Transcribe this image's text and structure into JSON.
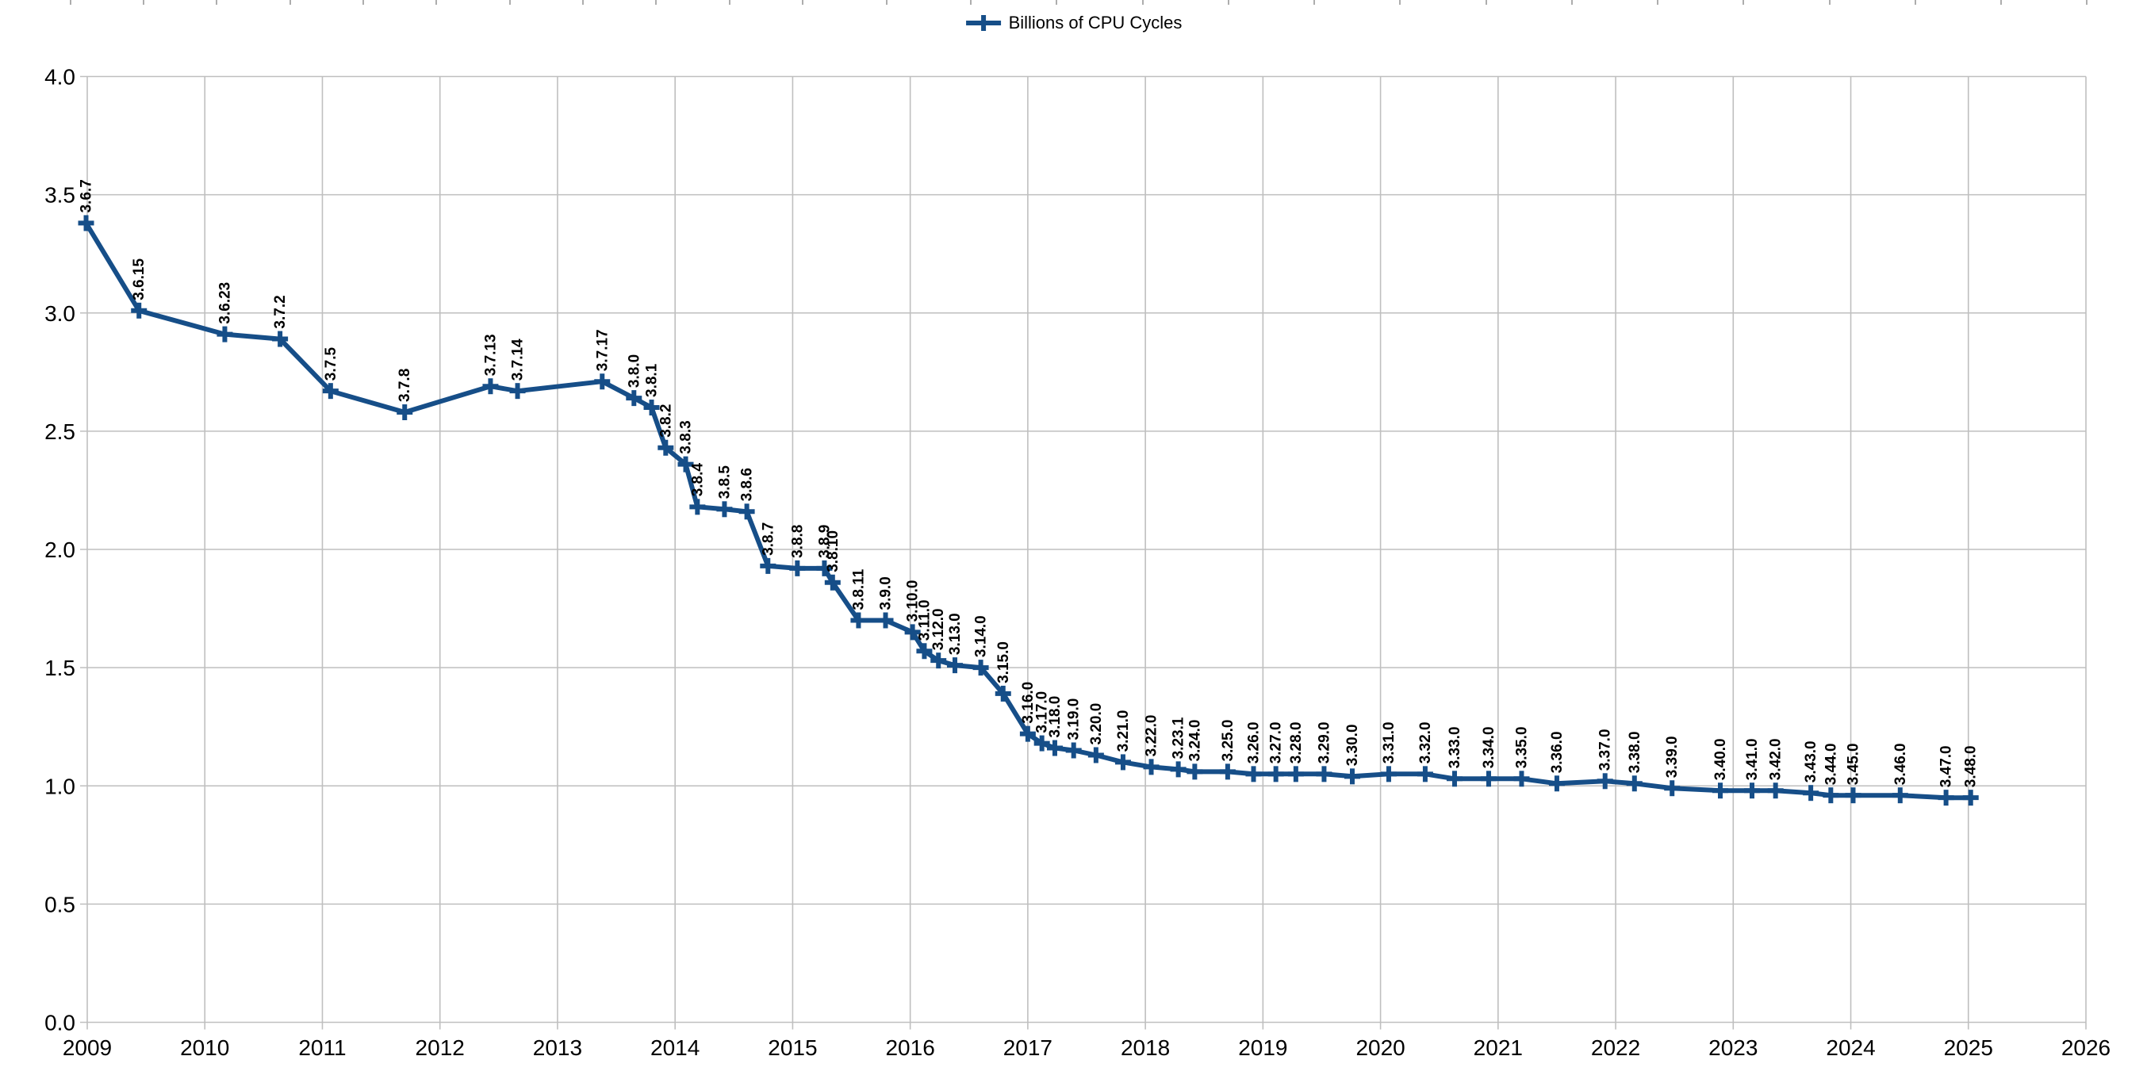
{
  "page": {
    "background": "#ffffff"
  },
  "legend": {
    "label": "Billions of CPU Cycles"
  },
  "decorations": {
    "top_ruler_tick_xs": [
      89,
      181,
      273,
      366,
      458,
      550,
      643,
      735,
      827,
      920,
      1012,
      1118,
      1224,
      1332,
      1441,
      1549,
      1657,
      1765,
      1874,
      1982,
      2090,
      2198,
      2307,
      2415,
      2523,
      2631
    ],
    "ruler_color": "#adadad"
  },
  "chart_data": {
    "type": "line",
    "title": "",
    "legend": [
      "Billions of CPU Cycles"
    ],
    "legend_position": "top-center",
    "grid": true,
    "colors": {
      "series": "#164e88",
      "grid": "#bfbfbf",
      "text": "#000000"
    },
    "x_axis": {
      "min": 2009,
      "max": 2026,
      "tick_step": 1,
      "tick_labels": [
        "2009",
        "2010",
        "2011",
        "2012",
        "2013",
        "2014",
        "2015",
        "2016",
        "2017",
        "2018",
        "2019",
        "2020",
        "2021",
        "2022",
        "2023",
        "2024",
        "2025",
        "2026"
      ]
    },
    "y_axis": {
      "min": 0.0,
      "max": 4.0,
      "tick_step": 0.5,
      "tick_labels": [
        "0.0",
        "0.5",
        "1.0",
        "1.5",
        "2.0",
        "2.5",
        "3.0",
        "3.5",
        "4.0"
      ]
    },
    "series": [
      {
        "name": "Billions of CPU Cycles",
        "marker": "plus",
        "points": [
          {
            "label": "3.6.7",
            "x": 2008.99,
            "y": 3.38
          },
          {
            "label": "3.6.15",
            "x": 2009.44,
            "y": 3.01
          },
          {
            "label": "3.6.23",
            "x": 2010.17,
            "y": 2.91
          },
          {
            "label": "3.7.2",
            "x": 2010.64,
            "y": 2.89
          },
          {
            "label": "3.7.5",
            "x": 2011.07,
            "y": 2.67
          },
          {
            "label": "3.7.8",
            "x": 2011.7,
            "y": 2.58
          },
          {
            "label": "3.7.13",
            "x": 2012.43,
            "y": 2.69
          },
          {
            "label": "3.7.14",
            "x": 2012.66,
            "y": 2.67
          },
          {
            "label": "3.7.17",
            "x": 2013.38,
            "y": 2.71
          },
          {
            "label": "3.8.0",
            "x": 2013.65,
            "y": 2.64
          },
          {
            "label": "3.8.1",
            "x": 2013.8,
            "y": 2.6
          },
          {
            "label": "3.8.2",
            "x": 2013.92,
            "y": 2.43
          },
          {
            "label": "3.8.3",
            "x": 2014.09,
            "y": 2.36
          },
          {
            "label": "3.8.4",
            "x": 2014.19,
            "y": 2.18
          },
          {
            "label": "3.8.5",
            "x": 2014.42,
            "y": 2.17
          },
          {
            "label": "3.8.6",
            "x": 2014.61,
            "y": 2.16
          },
          {
            "label": "3.8.7",
            "x": 2014.79,
            "y": 1.93
          },
          {
            "label": "3.8.8",
            "x": 2015.04,
            "y": 1.92
          },
          {
            "label": "3.8.9",
            "x": 2015.27,
            "y": 1.92
          },
          {
            "label": "3.8.10",
            "x": 2015.34,
            "y": 1.86
          },
          {
            "label": "3.8.11",
            "x": 2015.56,
            "y": 1.7
          },
          {
            "label": "3.9.0",
            "x": 2015.79,
            "y": 1.7
          },
          {
            "label": "3.10.0",
            "x": 2016.02,
            "y": 1.65
          },
          {
            "label": "3.11.0",
            "x": 2016.12,
            "y": 1.57
          },
          {
            "label": "3.12.0",
            "x": 2016.24,
            "y": 1.53
          },
          {
            "label": "3.13.0",
            "x": 2016.38,
            "y": 1.51
          },
          {
            "label": "3.14.0",
            "x": 2016.6,
            "y": 1.5
          },
          {
            "label": "3.15.0",
            "x": 2016.79,
            "y": 1.39
          },
          {
            "label": "3.16.0",
            "x": 2017.0,
            "y": 1.22
          },
          {
            "label": "3.17.0",
            "x": 2017.12,
            "y": 1.18
          },
          {
            "label": "3.18.0",
            "x": 2017.23,
            "y": 1.16
          },
          {
            "label": "3.19.0",
            "x": 2017.39,
            "y": 1.15
          },
          {
            "label": "3.20.0",
            "x": 2017.58,
            "y": 1.13
          },
          {
            "label": "3.21.0",
            "x": 2017.81,
            "y": 1.1
          },
          {
            "label": "3.22.0",
            "x": 2018.05,
            "y": 1.08
          },
          {
            "label": "3.23.1",
            "x": 2018.28,
            "y": 1.07
          },
          {
            "label": "3.24.0",
            "x": 2018.42,
            "y": 1.06
          },
          {
            "label": "3.25.0",
            "x": 2018.7,
            "y": 1.06
          },
          {
            "label": "3.26.0",
            "x": 2018.92,
            "y": 1.05
          },
          {
            "label": "3.27.0",
            "x": 2019.11,
            "y": 1.05
          },
          {
            "label": "3.28.0",
            "x": 2019.28,
            "y": 1.05
          },
          {
            "label": "3.29.0",
            "x": 2019.52,
            "y": 1.05
          },
          {
            "label": "3.30.0",
            "x": 2019.76,
            "y": 1.04
          },
          {
            "label": "3.31.0",
            "x": 2020.07,
            "y": 1.05
          },
          {
            "label": "3.32.0",
            "x": 2020.38,
            "y": 1.05
          },
          {
            "label": "3.33.0",
            "x": 2020.63,
            "y": 1.03
          },
          {
            "label": "3.34.0",
            "x": 2020.92,
            "y": 1.03
          },
          {
            "label": "3.35.0",
            "x": 2021.2,
            "y": 1.03
          },
          {
            "label": "3.36.0",
            "x": 2021.5,
            "y": 1.01
          },
          {
            "label": "3.37.0",
            "x": 2021.91,
            "y": 1.02
          },
          {
            "label": "3.38.0",
            "x": 2022.16,
            "y": 1.01
          },
          {
            "label": "3.39.0",
            "x": 2022.48,
            "y": 0.99
          },
          {
            "label": "3.40.0",
            "x": 2022.89,
            "y": 0.98
          },
          {
            "label": "3.41.0",
            "x": 2023.16,
            "y": 0.98
          },
          {
            "label": "3.42.0",
            "x": 2023.36,
            "y": 0.98
          },
          {
            "label": "3.43.0",
            "x": 2023.66,
            "y": 0.97
          },
          {
            "label": "3.44.0",
            "x": 2023.83,
            "y": 0.96
          },
          {
            "label": "3.45.0",
            "x": 2024.02,
            "y": 0.96
          },
          {
            "label": "3.46.0",
            "x": 2024.42,
            "y": 0.96
          },
          {
            "label": "3.47.0",
            "x": 2024.81,
            "y": 0.95
          },
          {
            "label": "3.48.0",
            "x": 2025.02,
            "y": 0.95
          }
        ]
      }
    ]
  }
}
